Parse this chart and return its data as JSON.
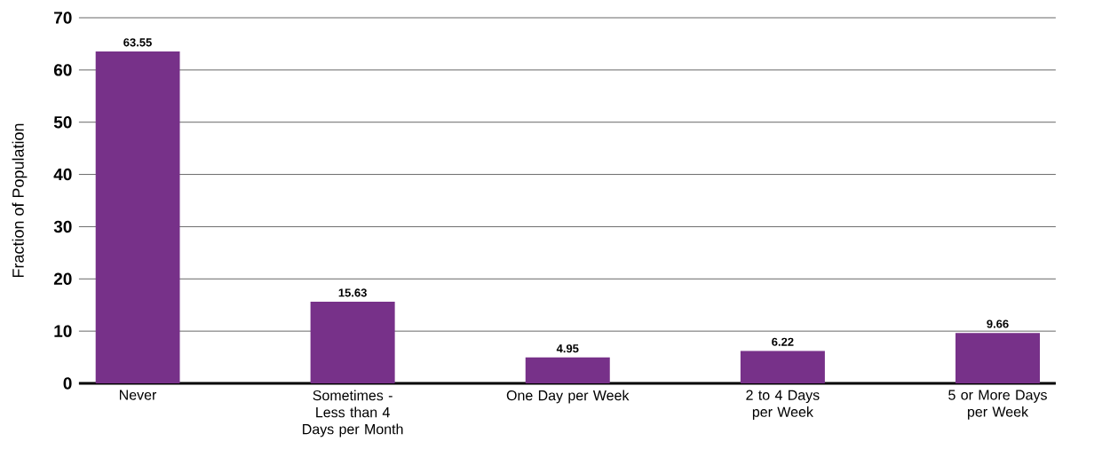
{
  "chart_data": {
    "type": "bar",
    "ylabel": "Fraction of Population",
    "categories": [
      "Never",
      "Sometimes - Less than 4 Days per Month",
      "One Day per Week",
      "2 to 4 Days per Week",
      "5 or More Days per Week"
    ],
    "values": [
      63.55,
      15.63,
      4.95,
      6.22,
      9.66
    ],
    "color": "#773189",
    "ylim": [
      0,
      70
    ],
    "yticks": [
      0,
      10,
      20,
      30,
      40,
      50,
      60,
      70
    ],
    "grid": "y",
    "data_labels": true
  }
}
